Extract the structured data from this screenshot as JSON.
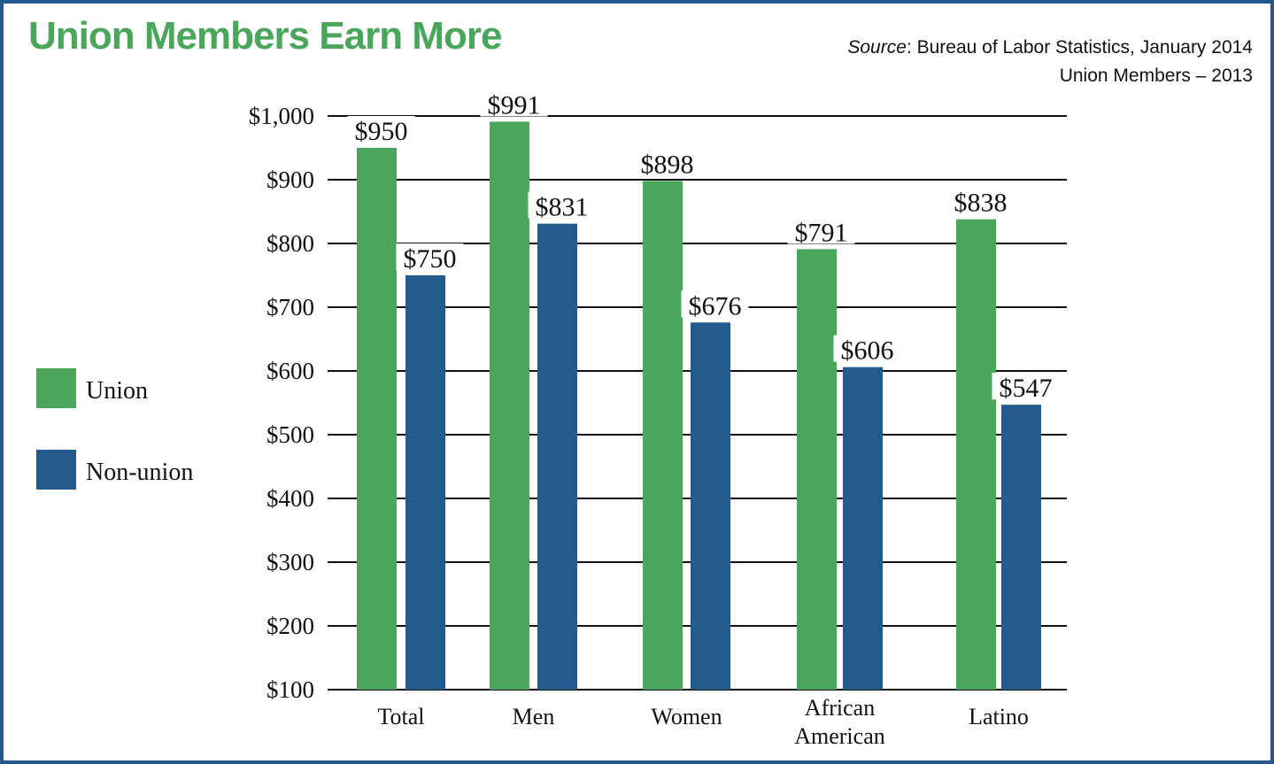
{
  "title": "Union Members Earn More",
  "source": {
    "label": "Source",
    "text": ": Bureau of Labor Statistics, January 2014",
    "subtitle": "Union Members – 2013"
  },
  "colors": {
    "union": "#4aa65a",
    "non_union": "#245b8e",
    "border": "#245a8f",
    "title": "#4aa65a"
  },
  "chart_data": {
    "type": "bar",
    "title": "Union Members Earn More",
    "categories": [
      "Total",
      "Men",
      "Women",
      "African American",
      "Latino"
    ],
    "series": [
      {
        "name": "Union",
        "values": [
          950,
          991,
          898,
          791,
          838
        ],
        "labels": [
          "$950",
          "$991",
          "$898",
          "$791",
          "$838"
        ]
      },
      {
        "name": "Non-union",
        "values": [
          750,
          831,
          676,
          606,
          547
        ],
        "labels": [
          "$750",
          "$831",
          "$676",
          "$606",
          "$547"
        ]
      }
    ],
    "yticks": [
      100,
      200,
      300,
      400,
      500,
      600,
      700,
      800,
      900,
      1000
    ],
    "ytick_labels": [
      "$100",
      "$200",
      "$300",
      "$400",
      "$500",
      "$600",
      "$700",
      "$800",
      "$900",
      "$1,000"
    ],
    "ylim": [
      100,
      1000
    ],
    "grid": true,
    "legend_position": "left",
    "xlabel": "",
    "ylabel": ""
  }
}
